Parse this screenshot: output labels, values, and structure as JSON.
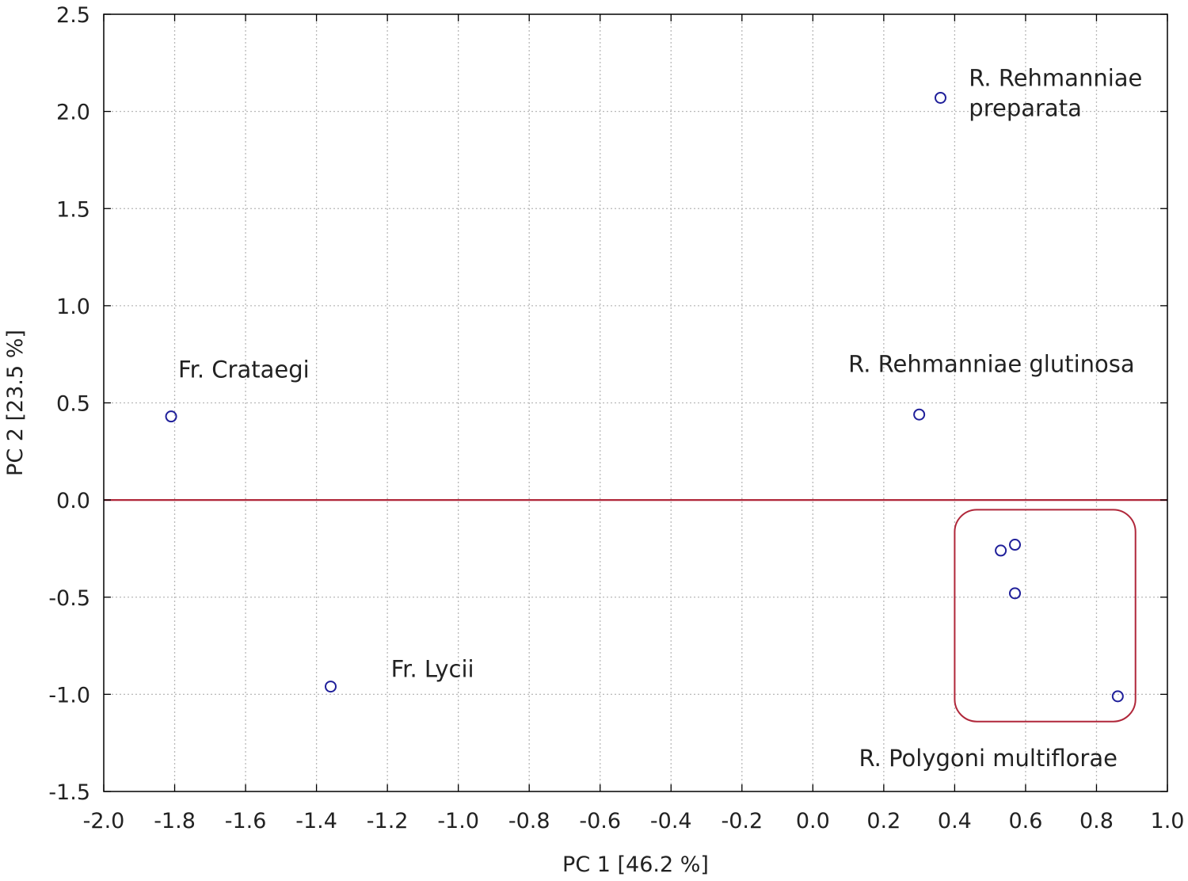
{
  "chart_data": {
    "type": "scatter",
    "xlabel": "PC 1 [46.2 %]",
    "ylabel": "PC 2 [23.5 %]",
    "xlim": [
      -2.0,
      1.0
    ],
    "ylim": [
      -1.5,
      2.5
    ],
    "x_ticks": [
      "-2.0",
      "-1.8",
      "-1.6",
      "-1.4",
      "-1.2",
      "-1.0",
      "-0.8",
      "-0.6",
      "-0.4",
      "-0.2",
      "0.0",
      "0.2",
      "0.4",
      "0.6",
      "0.8",
      "1.0"
    ],
    "y_ticks": [
      "-1.5",
      "-1.0",
      "-0.5",
      "0.0",
      "0.5",
      "1.0",
      "1.5",
      "2.0",
      "2.5"
    ],
    "grid": true,
    "reference_line": {
      "y": 0.0,
      "color": "#b0273a"
    },
    "points": [
      {
        "x": -1.81,
        "y": 0.43
      },
      {
        "x": -1.36,
        "y": -0.96
      },
      {
        "x": 0.3,
        "y": 0.44
      },
      {
        "x": 0.36,
        "y": 2.07
      },
      {
        "x": 0.53,
        "y": -0.26
      },
      {
        "x": 0.57,
        "y": -0.23
      },
      {
        "x": 0.57,
        "y": -0.48
      },
      {
        "x": 0.86,
        "y": -1.01
      }
    ],
    "annotations": [
      {
        "lines": [
          "Fr. Crataegi"
        ],
        "x": -1.79,
        "y": 0.63
      },
      {
        "lines": [
          "Fr. Lycii"
        ],
        "x": -1.19,
        "y": -0.91
      },
      {
        "lines": [
          "R. Rehmanniae glutinosa"
        ],
        "x": 0.1,
        "y": 0.66
      },
      {
        "lines": [
          "R. Rehmanniae",
          "preparata"
        ],
        "x": 0.44,
        "y": 2.13
      },
      {
        "lines": [
          "R. Polygoni multiflorae"
        ],
        "x": 0.13,
        "y": -1.37
      }
    ],
    "group_box": {
      "x": [
        0.4,
        0.91
      ],
      "y": [
        -1.14,
        -0.05
      ],
      "color": "#b0273a"
    },
    "colors": {
      "points": "#1f1f9a",
      "accent": "#b0273a"
    }
  }
}
